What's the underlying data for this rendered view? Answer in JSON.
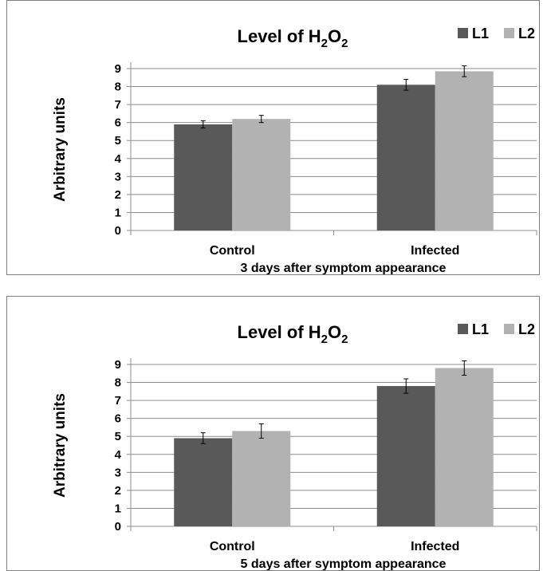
{
  "chart_data": [
    {
      "type": "bar",
      "title": "Level of H2O2",
      "title_parts": {
        "pre": "Level of H",
        "sub1": "2",
        "mid": "O",
        "sub2": "2"
      },
      "ylabel": "Arbitrary units",
      "xlabel": "3 days after symptom appearance",
      "categories": [
        "Control",
        "Infected"
      ],
      "ylim": [
        0,
        9
      ],
      "yticks": [
        "0",
        "1",
        "2",
        "3",
        "4",
        "5",
        "6",
        "7",
        "8",
        "9"
      ],
      "grid": true,
      "legend_position": "top-right",
      "series": [
        {
          "name": "L1",
          "color": "#595959",
          "values": [
            5.9,
            8.1
          ],
          "errors": [
            0.2,
            0.3
          ]
        },
        {
          "name": "L2",
          "color": "#b2b2b2",
          "values": [
            6.2,
            8.85
          ],
          "errors": [
            0.2,
            0.3
          ]
        }
      ]
    },
    {
      "type": "bar",
      "title": "Level of H2O2",
      "title_parts": {
        "pre": "Level of H",
        "sub1": "2",
        "mid": "O",
        "sub2": "2"
      },
      "ylabel": "Arbitrary units",
      "xlabel": "5 days after symptom appearance",
      "categories": [
        "Control",
        "Infected"
      ],
      "ylim": [
        0,
        9
      ],
      "yticks": [
        "0",
        "1",
        "2",
        "3",
        "4",
        "5",
        "6",
        "7",
        "8",
        "9"
      ],
      "grid": true,
      "legend_position": "top-right",
      "series": [
        {
          "name": "L1",
          "color": "#595959",
          "values": [
            4.9,
            7.8
          ],
          "errors": [
            0.3,
            0.4
          ]
        },
        {
          "name": "L2",
          "color": "#b2b2b2",
          "values": [
            5.3,
            8.8
          ],
          "errors": [
            0.4,
            0.4
          ]
        }
      ]
    }
  ]
}
